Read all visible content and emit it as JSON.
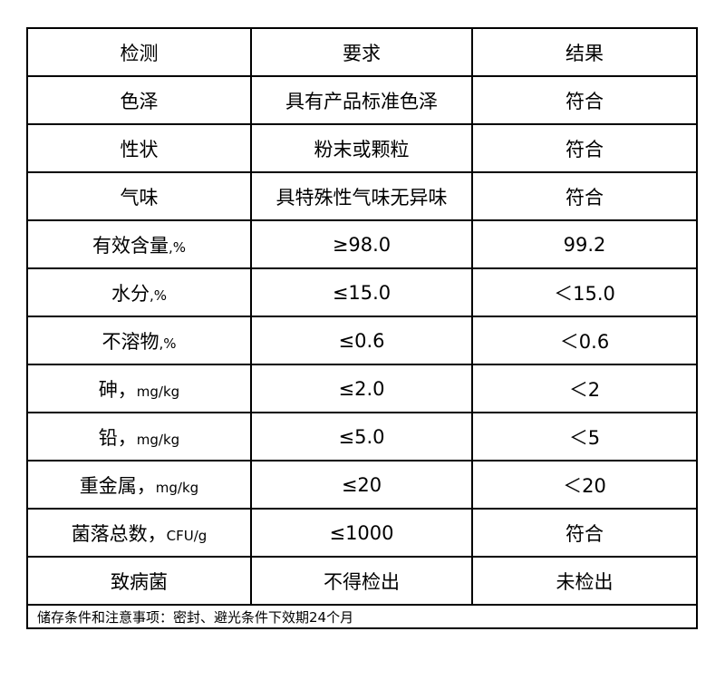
{
  "header": [
    "检测",
    "要求",
    "结果"
  ],
  "rows": [
    {
      "item": "色泽",
      "unit": "",
      "requirement": "具有产品标准色泽",
      "result": "符合"
    },
    {
      "item": "性状",
      "unit": "",
      "requirement": "粉末或颗粒",
      "result": "符合"
    },
    {
      "item": "气味",
      "unit": "",
      "requirement": "具特殊性气味无异味",
      "result": "符合"
    },
    {
      "item": "有效含量",
      "unit": ",%",
      "requirement": "≥98.0",
      "result": "99.2"
    },
    {
      "item": "水分",
      "unit": ",%",
      "requirement": "≤15.0",
      "result": "＜15.0"
    },
    {
      "item": "不溶物",
      "unit": ",%",
      "requirement": "≤0.6",
      "result": "＜0.6"
    },
    {
      "item": "砷，",
      "unit": "mg/kg",
      "requirement": "≤2.0",
      "result": "＜2"
    },
    {
      "item": "铅，",
      "unit": "mg/kg",
      "requirement": "≤5.0",
      "result": "＜5"
    },
    {
      "item": "重金属，",
      "unit": "mg/kg",
      "requirement": "≤20",
      "result": "＜20"
    },
    {
      "item": "菌落总数，",
      "unit": "CFU/g",
      "requirement": "≤1000",
      "result": "符合"
    },
    {
      "item": "致病菌",
      "unit": "",
      "requirement": "不得检出",
      "result": "未检出"
    }
  ],
  "footer": "储存条件和注意事项：密封、避光条件下效期24个月"
}
